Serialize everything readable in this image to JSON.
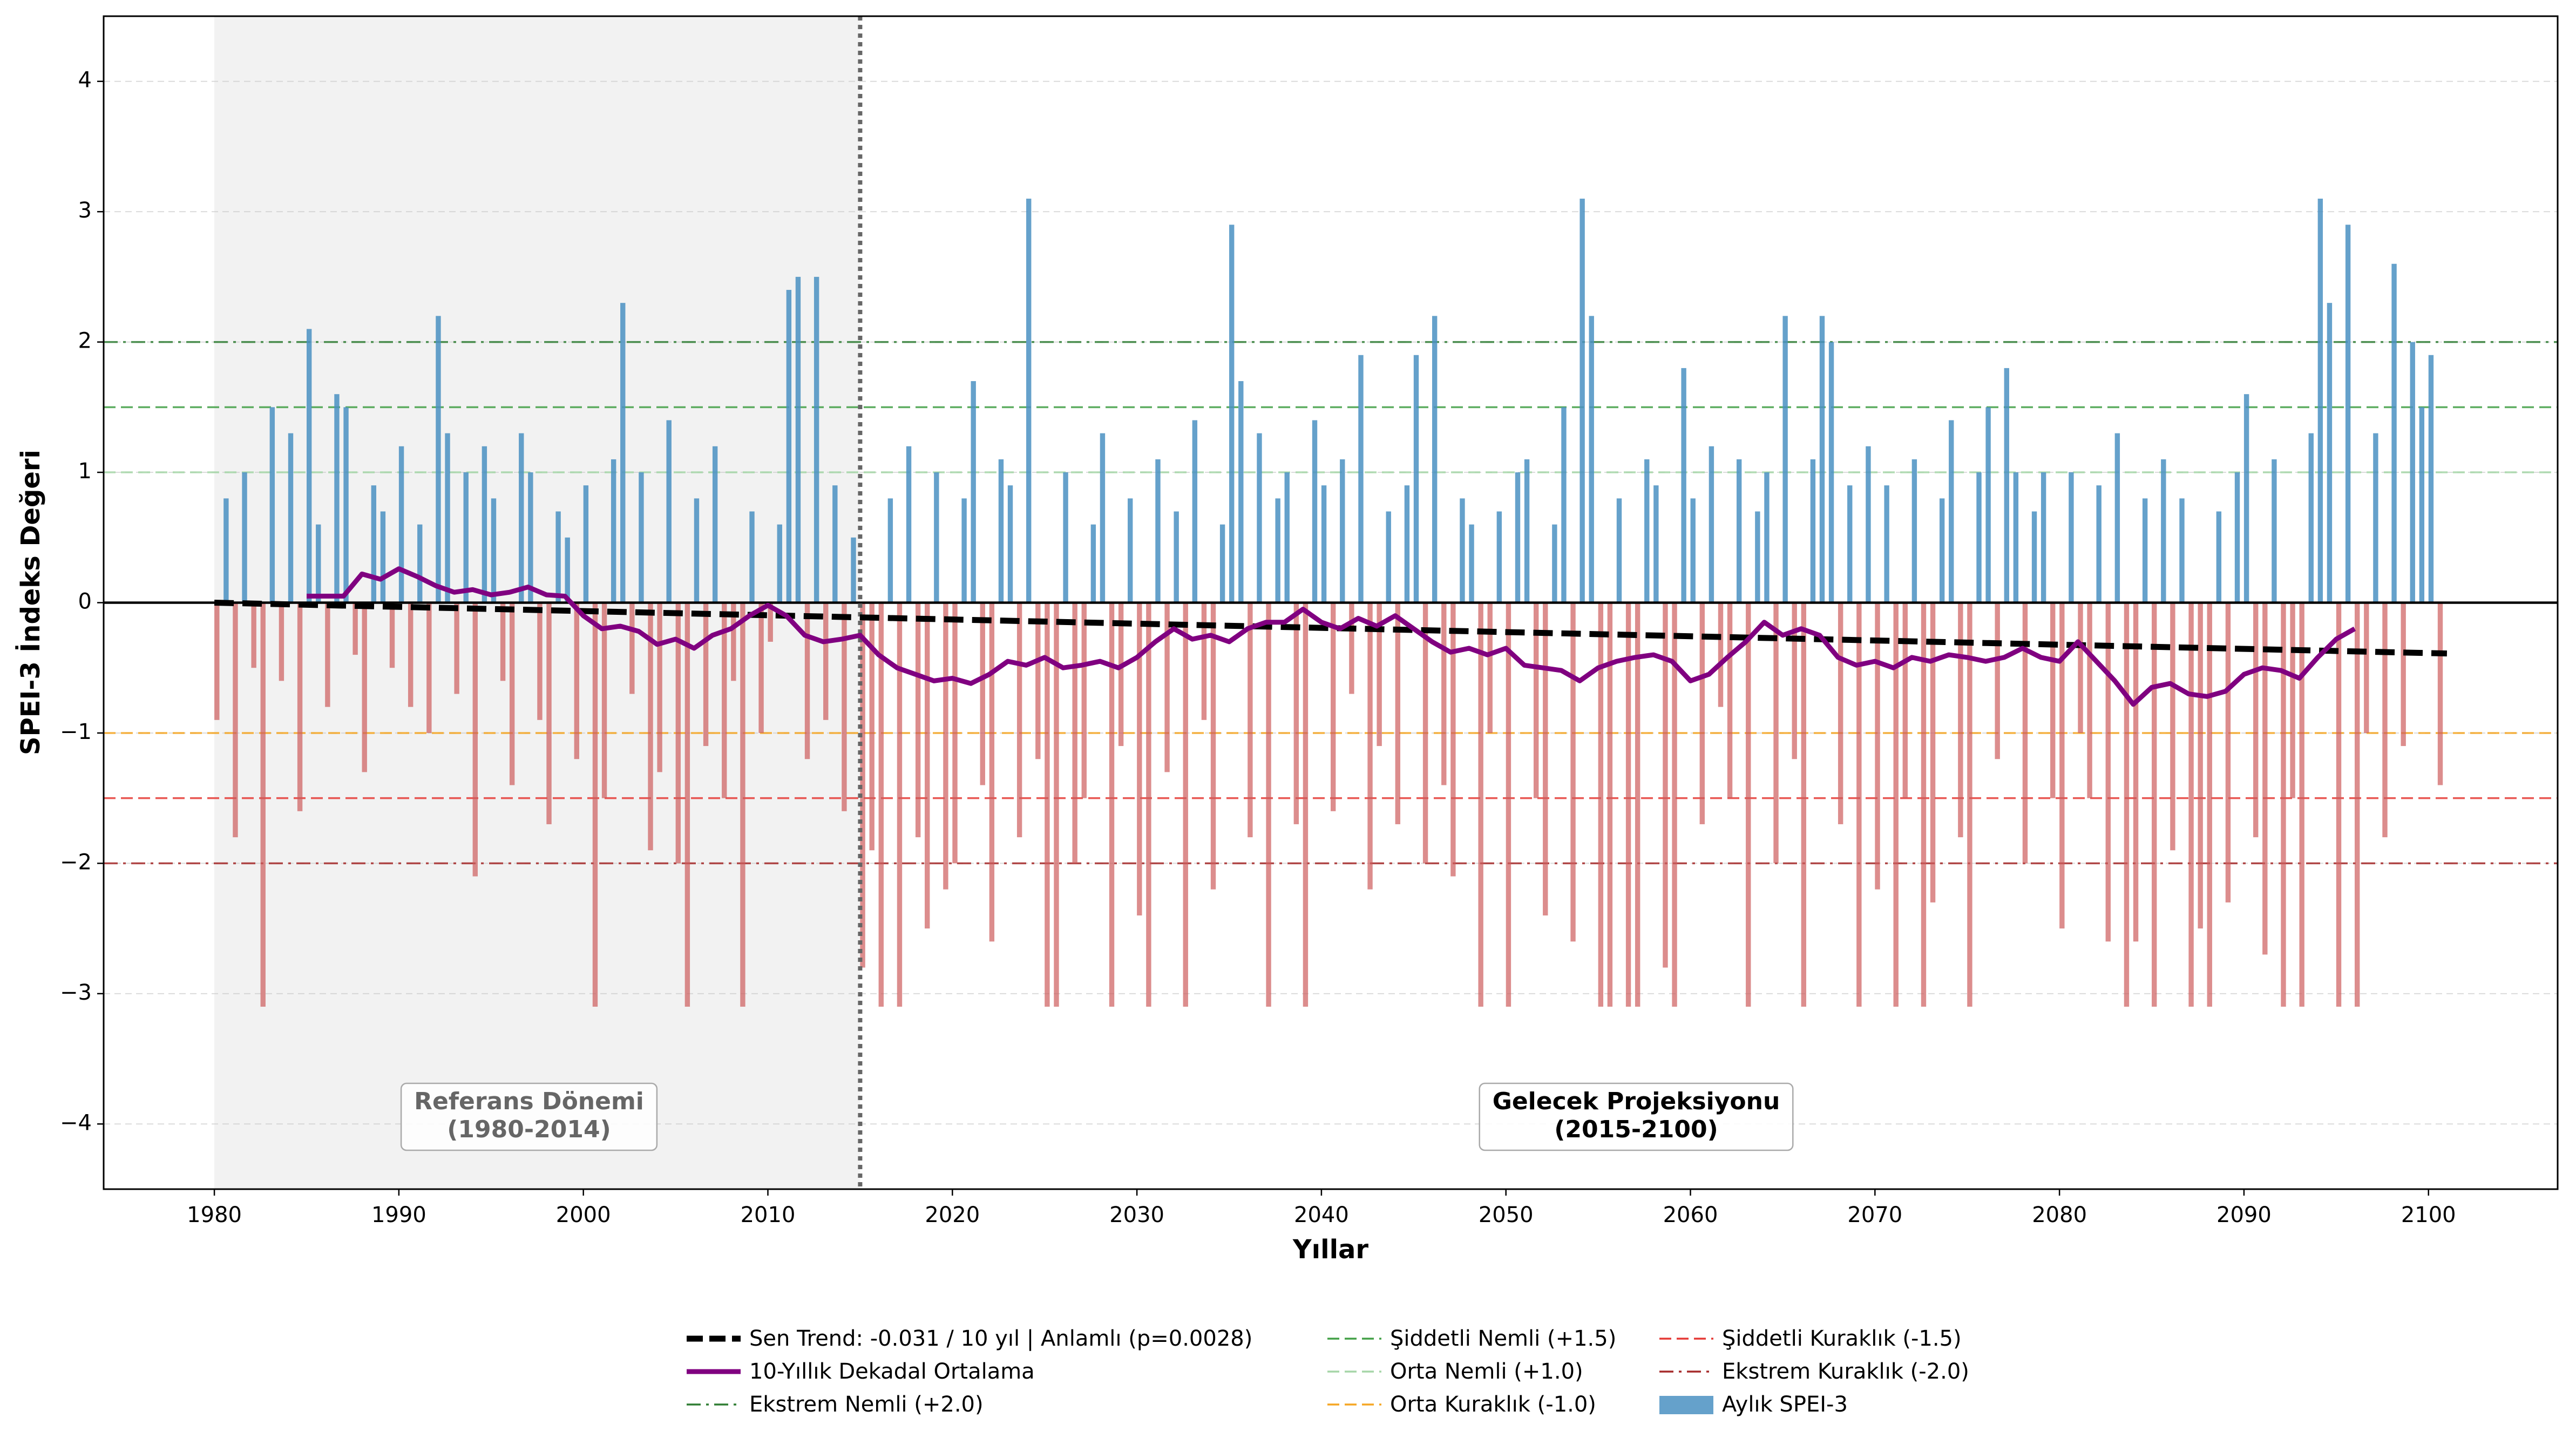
{
  "chart_data": {
    "type": "bar",
    "xlabel": "Yıllar",
    "ylabel": "SPEI-3 İndeks Değeri",
    "xlim": [
      1974,
      2107
    ],
    "ylim": [
      -4.5,
      4.5
    ],
    "xticks": [
      1980,
      1990,
      2000,
      2010,
      2020,
      2030,
      2040,
      2050,
      2060,
      2070,
      2080,
      2090,
      2100
    ],
    "yticks": [
      {
        "value": -4,
        "label": "−4"
      },
      {
        "value": -3,
        "label": "−3"
      },
      {
        "value": -2,
        "label": "−2"
      },
      {
        "value": -1,
        "label": "−1"
      },
      0,
      1,
      2,
      3,
      4
    ],
    "grid": true,
    "shade": [
      1980,
      2015
    ],
    "divider": 2015,
    "annotations": [
      {
        "lines": [
          "Referans Dönemi",
          "(1980-2014)"
        ]
      },
      {
        "lines": [
          "Gelecek Projeksiyonu",
          "(2015-2100)"
        ]
      }
    ],
    "x": [
      1980,
      1980.5,
      1981,
      1981.5,
      1982,
      1982.5,
      1983,
      1983.5,
      1984,
      1984.5,
      1985,
      1985.5,
      1986,
      1986.5,
      1987,
      1987.5,
      1988,
      1988.5,
      1989,
      1989.5,
      1990,
      1990.5,
      1991,
      1991.5,
      1992,
      1992.5,
      1993,
      1993.5,
      1994,
      1994.5,
      1995,
      1995.5,
      1996,
      1996.5,
      1997,
      1997.5,
      1998,
      1998.5,
      1999,
      1999.5,
      2000,
      2000.5,
      2001,
      2001.5,
      2002,
      2002.5,
      2003,
      2003.5,
      2004,
      2004.5,
      2005,
      2005.5,
      2006,
      2006.5,
      2007,
      2007.5,
      2008,
      2008.5,
      2009,
      2009.5,
      2010,
      2010.5,
      2011,
      2011.5,
      2012,
      2012.5,
      2013,
      2013.5,
      2014,
      2014.5,
      2015,
      2015.5,
      2016,
      2016.5,
      2017,
      2017.5,
      2018,
      2018.5,
      2019,
      2019.5,
      2020,
      2020.5,
      2021,
      2021.5,
      2022,
      2022.5,
      2023,
      2023.5,
      2024,
      2024.5,
      2025,
      2025.5,
      2026,
      2026.5,
      2027,
      2027.5,
      2028,
      2028.5,
      2029,
      2029.5,
      2030,
      2030.5,
      2031,
      2031.5,
      2032,
      2032.5,
      2033,
      2033.5,
      2034,
      2034.5,
      2035,
      2035.5,
      2036,
      2036.5,
      2037,
      2037.5,
      2038,
      2038.5,
      2039,
      2039.5,
      2040,
      2040.5,
      2041,
      2041.5,
      2042,
      2042.5,
      2043,
      2043.5,
      2044,
      2044.5,
      2045,
      2045.5,
      2046,
      2046.5,
      2047,
      2047.5,
      2048,
      2048.5,
      2049,
      2049.5,
      2050,
      2050.5,
      2051,
      2051.5,
      2052,
      2052.5,
      2053,
      2053.5,
      2054,
      2054.5,
      2055,
      2055.5,
      2056,
      2056.5,
      2057,
      2057.5,
      2058,
      2058.5,
      2059,
      2059.5,
      2060,
      2060.5,
      2061,
      2061.5,
      2062,
      2062.5,
      2063,
      2063.5,
      2064,
      2064.5,
      2065,
      2065.5,
      2066,
      2066.5,
      2067,
      2067.5,
      2068,
      2068.5,
      2069,
      2069.5,
      2070,
      2070.5,
      2071,
      2071.5,
      2072,
      2072.5,
      2073,
      2073.5,
      2074,
      2074.5,
      2075,
      2075.5,
      2076,
      2076.5,
      2077,
      2077.5,
      2078,
      2078.5,
      2079,
      2079.5,
      2080,
      2080.5,
      2081,
      2081.5,
      2082,
      2082.5,
      2083,
      2083.5,
      2084,
      2084.5,
      2085,
      2085.5,
      2086,
      2086.5,
      2087,
      2087.5,
      2088,
      2088.5,
      2089,
      2089.5,
      2090,
      2090.5,
      2091,
      2091.5,
      2092,
      2092.5,
      2093,
      2093.5,
      2094,
      2094.5,
      2095,
      2095.5,
      2096,
      2096.5,
      2097,
      2097.5,
      2098,
      2098.5,
      2099,
      2099.5,
      2100,
      2100.5
    ],
    "series": [
      {
        "name": "Aylık SPEI-3",
        "color": "#4a90c2",
        "negative_color": "#cd5c5c",
        "values": [
          -0.9,
          0.8,
          -1.8,
          1.0,
          -0.5,
          -3.1,
          1.5,
          -0.6,
          1.3,
          -1.6,
          2.1,
          0.6,
          -0.8,
          1.6,
          1.5,
          -0.4,
          -1.3,
          0.9,
          0.7,
          -0.5,
          1.2,
          -0.8,
          0.6,
          -1.0,
          2.2,
          1.3,
          -0.7,
          1.0,
          -2.1,
          1.2,
          0.8,
          -0.6,
          -1.4,
          1.3,
          1.0,
          -0.9,
          -1.7,
          0.7,
          0.5,
          -1.2,
          0.9,
          -3.1,
          -1.5,
          1.1,
          2.3,
          -0.7,
          1.0,
          -1.9,
          -1.3,
          1.4,
          -2.0,
          -3.1,
          0.8,
          -1.1,
          1.2,
          -1.5,
          -0.6,
          -3.1,
          0.7,
          -1.0,
          -0.3,
          0.6,
          2.4,
          2.5,
          -1.2,
          2.5,
          -0.9,
          0.9,
          -1.6,
          0.5,
          -2.8,
          -1.9,
          -3.1,
          0.8,
          -3.1,
          1.2,
          -1.8,
          -2.5,
          1.0,
          -2.2,
          -2.0,
          0.8,
          1.7,
          -1.4,
          -2.6,
          1.1,
          0.9,
          -1.8,
          3.1,
          -1.2,
          -3.1,
          -3.1,
          1.0,
          -2.0,
          -1.5,
          0.6,
          1.3,
          -3.1,
          -1.1,
          0.8,
          -2.4,
          -3.1,
          1.1,
          -1.3,
          0.7,
          -3.1,
          1.4,
          -0.9,
          -2.2,
          0.6,
          2.9,
          1.7,
          -1.8,
          1.3,
          -3.1,
          0.8,
          1.0,
          -1.7,
          -3.1,
          1.4,
          0.9,
          -1.6,
          1.1,
          -0.7,
          1.9,
          -2.2,
          -1.1,
          0.7,
          -1.7,
          0.9,
          1.9,
          -2.0,
          2.2,
          -1.4,
          -2.1,
          0.8,
          0.6,
          -3.1,
          -1.0,
          0.7,
          -3.1,
          1.0,
          1.1,
          -1.5,
          -2.4,
          0.6,
          1.5,
          -2.6,
          3.1,
          2.2,
          -3.1,
          -3.1,
          0.8,
          -3.1,
          -3.1,
          1.1,
          0.9,
          -2.8,
          -3.1,
          1.8,
          0.8,
          -1.7,
          1.2,
          -0.8,
          -1.5,
          1.1,
          -3.1,
          0.7,
          1.0,
          -2.0,
          2.2,
          -1.2,
          -3.1,
          1.1,
          2.2,
          2.0,
          -1.7,
          0.9,
          -3.1,
          1.2,
          -2.2,
          0.9,
          -3.1,
          -1.5,
          1.1,
          -3.1,
          -2.3,
          0.8,
          1.4,
          -1.8,
          -3.1,
          1.0,
          1.5,
          -1.2,
          1.8,
          1.0,
          -2.0,
          0.7,
          1.0,
          -1.5,
          -2.5,
          1.0,
          -1.0,
          -1.5,
          0.9,
          -2.6,
          1.3,
          -3.1,
          -2.6,
          0.8,
          -3.1,
          1.1,
          -1.9,
          0.8,
          -3.1,
          -2.5,
          -3.1,
          0.7,
          -2.3,
          1.0,
          1.6,
          -1.8,
          -2.7,
          1.1,
          -3.1,
          -1.5,
          -3.1,
          1.3,
          3.1,
          2.3,
          -3.1,
          2.9,
          -3.1,
          -1.0,
          1.3,
          -1.8,
          2.6,
          -1.1,
          2.0,
          1.5,
          1.9,
          -1.4
        ]
      }
    ],
    "lines": [
      {
        "name": "Sen Trend: -0.031 / 10 yıl | Anlamlı (p=0.0028)",
        "color": "#000000",
        "style": "dashed",
        "x": [
          1980,
          2101
        ],
        "values": [
          0,
          -0.39
        ]
      },
      {
        "name": "10-Yıllık Dekadal Ortalama",
        "color": "#800080",
        "style": "solid",
        "x": [
          1985,
          1986,
          1987,
          1988,
          1989,
          1990,
          1991,
          1992,
          1993,
          1994,
          1995,
          1996,
          1997,
          1998,
          1999,
          2000,
          2001,
          2002,
          2003,
          2004,
          2005,
          2006,
          2007,
          2008,
          2009,
          2010,
          2011,
          2012,
          2013,
          2014,
          2015,
          2016,
          2017,
          2018,
          2019,
          2020,
          2021,
          2022,
          2023,
          2024,
          2025,
          2026,
          2027,
          2028,
          2029,
          2030,
          2031,
          2032,
          2033,
          2034,
          2035,
          2036,
          2037,
          2038,
          2039,
          2040,
          2041,
          2042,
          2043,
          2044,
          2045,
          2046,
          2047,
          2048,
          2049,
          2050,
          2051,
          2052,
          2053,
          2054,
          2055,
          2056,
          2057,
          2058,
          2059,
          2060,
          2061,
          2062,
          2063,
          2064,
          2065,
          2066,
          2067,
          2068,
          2069,
          2070,
          2071,
          2072,
          2073,
          2074,
          2075,
          2076,
          2077,
          2078,
          2079,
          2080,
          2081,
          2082,
          2083,
          2084,
          2085,
          2086,
          2087,
          2088,
          2089,
          2090,
          2091,
          2092,
          2093,
          2094,
          2095,
          2096
        ],
        "values": [
          0.05,
          0.05,
          0.05,
          0.22,
          0.18,
          0.26,
          0.2,
          0.13,
          0.08,
          0.1,
          0.06,
          0.08,
          0.12,
          0.06,
          0.05,
          -0.1,
          -0.2,
          -0.18,
          -0.22,
          -0.32,
          -0.28,
          -0.35,
          -0.25,
          -0.2,
          -0.1,
          -0.02,
          -0.1,
          -0.25,
          -0.3,
          -0.28,
          -0.25,
          -0.4,
          -0.5,
          -0.55,
          -0.6,
          -0.58,
          -0.62,
          -0.55,
          -0.45,
          -0.48,
          -0.42,
          -0.5,
          -0.48,
          -0.45,
          -0.5,
          -0.42,
          -0.3,
          -0.2,
          -0.28,
          -0.25,
          -0.3,
          -0.2,
          -0.15,
          -0.15,
          -0.05,
          -0.15,
          -0.2,
          -0.12,
          -0.18,
          -0.1,
          -0.2,
          -0.3,
          -0.38,
          -0.35,
          -0.4,
          -0.35,
          -0.48,
          -0.5,
          -0.52,
          -0.6,
          -0.5,
          -0.45,
          -0.42,
          -0.4,
          -0.45,
          -0.6,
          -0.55,
          -0.42,
          -0.3,
          -0.15,
          -0.25,
          -0.2,
          -0.25,
          -0.42,
          -0.48,
          -0.45,
          -0.5,
          -0.42,
          -0.45,
          -0.4,
          -0.42,
          -0.45,
          -0.42,
          -0.35,
          -0.42,
          -0.45,
          -0.3,
          -0.45,
          -0.6,
          -0.78,
          -0.65,
          -0.62,
          -0.7,
          -0.72,
          -0.68,
          -0.55,
          -0.5,
          -0.52,
          -0.58,
          -0.42,
          -0.28,
          -0.2
        ]
      }
    ],
    "thresholds": [
      {
        "name": "Ekstrem Nemli (+2.0)",
        "value": 2.0,
        "color": "#2e7d32",
        "style": "dashdot"
      },
      {
        "name": "Şiddetli Nemli (+1.5)",
        "value": 1.5,
        "color": "#43a047",
        "style": "dashed"
      },
      {
        "name": "Orta Nemli (+1.0)",
        "value": 1.0,
        "color": "#a5d6a7",
        "style": "dashed"
      },
      {
        "name": "Orta Kuraklık (-1.0)",
        "value": -1.0,
        "color": "#f5a623",
        "style": "dashed"
      },
      {
        "name": "Şiddetli Kuraklık (-1.5)",
        "value": -1.5,
        "color": "#e53935",
        "style": "dashed"
      },
      {
        "name": "Ekstrem Kuraklık (-2.0)",
        "value": -2.0,
        "color": "#a52a2a",
        "style": "dashdot"
      }
    ]
  }
}
